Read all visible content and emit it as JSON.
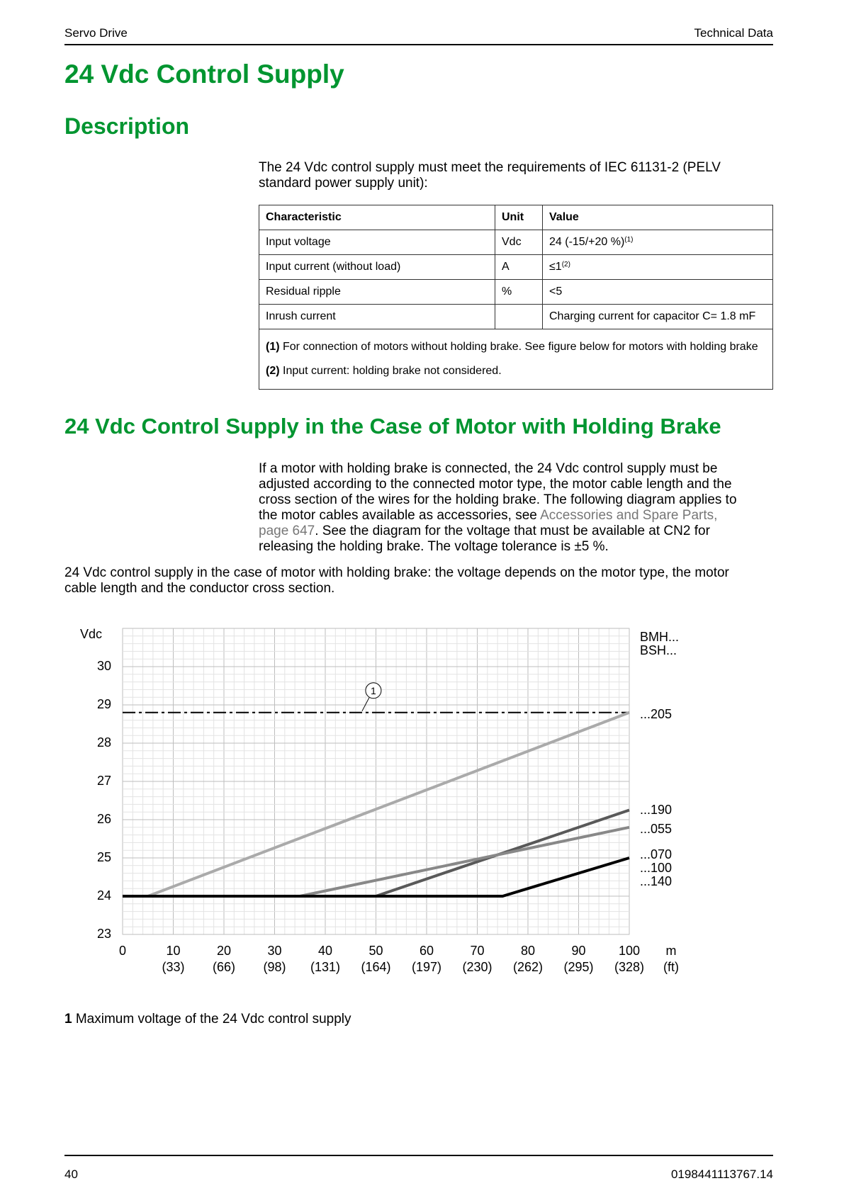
{
  "header": {
    "left": "Servo Drive",
    "right": "Technical Data"
  },
  "title": "24 Vdc Control Supply",
  "section1": {
    "heading": "Description",
    "intro_line1": "The 24 Vdc control supply must meet the requirements of IEC 61131-2 (PELV",
    "intro_line2": "standard power supply unit):",
    "table": {
      "headers": [
        "Characteristic",
        "Unit",
        "Value"
      ],
      "rows": [
        {
          "characteristic": "Input voltage",
          "unit": "Vdc",
          "value": "24 (-15/+20 %)",
          "sup": "(1)"
        },
        {
          "characteristic": "Input current (without load)",
          "unit": "A",
          "value": "≤1",
          "sup": "(2)"
        },
        {
          "characteristic": "Residual ripple",
          "unit": "%",
          "value": "<5",
          "sup": ""
        },
        {
          "characteristic": "Inrush current",
          "unit": "",
          "value": "Charging current for capacitor C= 1.8 mF",
          "sup": ""
        }
      ],
      "footnotes": [
        {
          "mark": "(1)",
          "text": " For connection of motors without holding brake. See figure below for motors with holding brake"
        },
        {
          "mark": "(2)",
          "text": " Input current: holding brake not considered."
        }
      ]
    }
  },
  "section2": {
    "heading": "24 Vdc Control Supply in the Case of Motor with Holding Brake",
    "p1_line1": "If a motor with holding brake is connected, the 24 Vdc control supply must be",
    "p1_line2": "adjusted according to the connected motor type, the motor cable length and the",
    "p1_line3": "cross section of the wires for the holding brake. The following diagram applies to",
    "p1_line4a": "the motor cables available as accessories, see ",
    "p1_link1": "Accessories and Spare Parts,",
    "p1_link2": "page 647",
    "p1_line5b": ". See the diagram for the voltage that must be available at CN2 for",
    "p1_line6": "releasing the holding brake. The voltage tolerance is ±5 %.",
    "p2_line1": "24 Vdc control supply in the case of motor with holding brake: the voltage depends on the motor type, the motor",
    "p2_line2": "cable length and the conductor cross section."
  },
  "chart_data": {
    "type": "line",
    "ylabel": "Vdc",
    "y_ticks": [
      "23",
      "24",
      "25",
      "26",
      "27",
      "28",
      "29",
      "30"
    ],
    "ylim": [
      23,
      31
    ],
    "x_ticks_m": [
      "0",
      "10",
      "20",
      "30",
      "40",
      "50",
      "60",
      "70",
      "80",
      "90",
      "100"
    ],
    "x_ticks_ft": [
      "(33)",
      "(66)",
      "(98)",
      "(131)",
      "(164)",
      "(197)",
      "(230)",
      "(262)",
      "(295)",
      "(328)"
    ],
    "xlim": [
      0,
      100
    ],
    "x_unit_m": "m",
    "x_unit_ft": "(ft)",
    "legend_header": [
      "BMH...",
      "BSH..."
    ],
    "grid": true,
    "series": [
      {
        "name": "...205",
        "color": "#aaaaaa",
        "x": [
          0,
          5,
          100
        ],
        "y": [
          24,
          24,
          28.8
        ]
      },
      {
        "name": "...190",
        "color": "#595959",
        "x": [
          0,
          50,
          100
        ],
        "y": [
          24,
          24,
          26.25
        ]
      },
      {
        "name": "...055",
        "color": "#888888",
        "x": [
          0,
          35,
          100
        ],
        "y": [
          24,
          24,
          25.8
        ]
      },
      {
        "name": "...070 ...100 ...140",
        "color": "#000000",
        "x": [
          0,
          75,
          100
        ],
        "y": [
          24,
          24,
          25
        ]
      }
    ],
    "series_labels": [
      "...205",
      "...190",
      "...055",
      "...070",
      "...100",
      "...140"
    ],
    "max_line": {
      "y": 28.8,
      "callout": "1"
    }
  },
  "legend_note": {
    "mark": "1",
    "text": " Maximum voltage of the 24 Vdc control supply"
  },
  "footer": {
    "page": "40",
    "doc": "0198441113767.14"
  }
}
